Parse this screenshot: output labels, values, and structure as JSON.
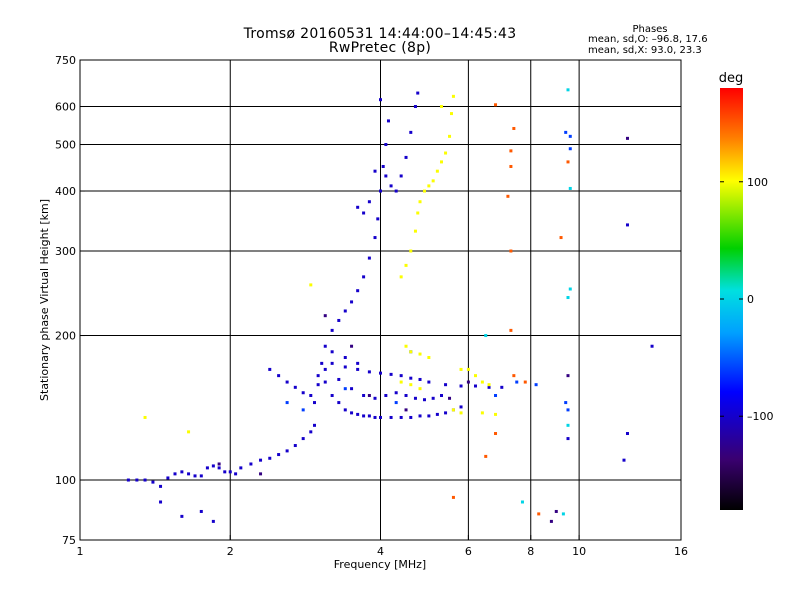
{
  "header": {
    "title_line1": "Tromsø 20160531 14:44:00–14:45:43",
    "title_line2": "RwPretec (8p)",
    "stats_heading": "Phases",
    "stats_o": "mean, sd,O: –96.8, 17.6",
    "stats_x": "mean, sd,X:  93.0, 23.3"
  },
  "colorbar": {
    "unit": "deg",
    "ticks": [
      {
        "value": 100,
        "label": "100"
      },
      {
        "value": 0,
        "label": "0"
      },
      {
        "value": -100,
        "label": "–100"
      }
    ],
    "range": [
      -180,
      180
    ]
  },
  "chart_data": {
    "type": "scatter",
    "title": "Tromsø 20160531 14:44:00–14:45:43",
    "subtitle": "RwPretec (8p)",
    "xlabel": "Frequency [MHz]",
    "ylabel": "Stationary phase Virtual Height [km]",
    "xscale": "log",
    "yscale": "log",
    "xlim": [
      1,
      16
    ],
    "ylim": [
      75,
      750
    ],
    "xticks": [
      {
        "value": 1,
        "label": "1"
      },
      {
        "value": 2,
        "label": "2"
      },
      {
        "value": 4,
        "label": "4"
      },
      {
        "value": 6,
        "label": "6"
      },
      {
        "value": 8,
        "label": "8"
      },
      {
        "value": 10,
        "label": "10"
      },
      {
        "value": 16,
        "label": "16"
      }
    ],
    "yticks": [
      {
        "value": 75,
        "label": "75"
      },
      {
        "value": 100,
        "label": "100"
      },
      {
        "value": 200,
        "label": "200"
      },
      {
        "value": 300,
        "label": "300"
      },
      {
        "value": 400,
        "label": "400"
      },
      {
        "value": 500,
        "label": "500"
      },
      {
        "value": 600,
        "label": "600"
      },
      {
        "value": 750,
        "label": "750"
      }
    ],
    "xgrid": [
      2,
      4,
      6,
      8,
      10
    ],
    "ygrid": [
      100,
      200,
      300,
      400,
      500,
      600
    ],
    "color_variable": "phase [deg]",
    "series": [
      {
        "phase": -100,
        "points": [
          [
            1.25,
            100
          ],
          [
            1.3,
            100
          ],
          [
            1.35,
            100
          ],
          [
            1.4,
            99
          ],
          [
            1.45,
            97
          ],
          [
            1.5,
            101
          ],
          [
            1.55,
            103
          ],
          [
            1.6,
            104
          ],
          [
            1.65,
            103
          ],
          [
            1.7,
            102
          ],
          [
            1.75,
            102
          ],
          [
            1.8,
            106
          ],
          [
            1.85,
            107
          ],
          [
            1.9,
            106
          ],
          [
            1.95,
            104
          ],
          [
            2.0,
            104
          ],
          [
            2.05,
            103
          ],
          [
            2.1,
            106
          ],
          [
            2.2,
            108
          ],
          [
            2.3,
            110
          ],
          [
            2.4,
            111
          ],
          [
            2.5,
            113
          ],
          [
            2.6,
            115
          ],
          [
            2.7,
            118
          ],
          [
            2.8,
            122
          ],
          [
            2.9,
            126
          ],
          [
            2.95,
            130
          ],
          [
            1.45,
            90
          ],
          [
            1.6,
            84
          ],
          [
            1.75,
            86
          ],
          [
            1.85,
            82
          ],
          [
            2.95,
            145
          ],
          [
            3.0,
            158
          ],
          [
            3.05,
            175
          ],
          [
            3.1,
            190
          ],
          [
            3.2,
            205
          ],
          [
            3.3,
            215
          ],
          [
            3.4,
            225
          ],
          [
            3.5,
            235
          ],
          [
            3.6,
            248
          ],
          [
            3.7,
            265
          ],
          [
            3.8,
            290
          ],
          [
            3.9,
            320
          ],
          [
            3.95,
            350
          ],
          [
            4.0,
            400
          ],
          [
            4.05,
            450
          ],
          [
            4.1,
            500
          ],
          [
            4.15,
            560
          ],
          [
            4.0,
            620
          ],
          [
            3.7,
            360
          ],
          [
            3.8,
            380
          ],
          [
            3.6,
            370
          ],
          [
            3.9,
            440
          ],
          [
            4.3,
            400
          ],
          [
            4.4,
            430
          ],
          [
            4.5,
            470
          ],
          [
            4.6,
            530
          ],
          [
            4.7,
            600
          ],
          [
            4.75,
            640
          ],
          [
            4.2,
            410
          ],
          [
            4.1,
            430
          ],
          [
            3.1,
            160
          ],
          [
            3.2,
            150
          ],
          [
            3.3,
            145
          ],
          [
            3.4,
            140
          ],
          [
            3.5,
            138
          ],
          [
            3.6,
            137
          ],
          [
            3.7,
            136
          ],
          [
            3.8,
            136
          ],
          [
            3.9,
            135
          ],
          [
            4.0,
            135
          ],
          [
            4.2,
            135
          ],
          [
            4.4,
            135
          ],
          [
            4.6,
            135
          ],
          [
            4.8,
            136
          ],
          [
            5.0,
            136
          ],
          [
            5.2,
            137
          ],
          [
            5.4,
            138
          ],
          [
            5.6,
            140
          ],
          [
            5.8,
            142
          ],
          [
            3.2,
            175
          ],
          [
            3.4,
            172
          ],
          [
            3.6,
            170
          ],
          [
            3.8,
            168
          ],
          [
            4.0,
            167
          ],
          [
            4.2,
            166
          ],
          [
            4.4,
            165
          ],
          [
            4.6,
            163
          ],
          [
            4.8,
            162
          ],
          [
            5.0,
            160
          ],
          [
            5.4,
            158
          ],
          [
            5.8,
            157
          ],
          [
            6.2,
            157
          ],
          [
            6.6,
            156
          ],
          [
            7.0,
            156
          ],
          [
            3.2,
            185
          ],
          [
            3.4,
            180
          ],
          [
            3.6,
            175
          ],
          [
            3.0,
            165
          ],
          [
            3.1,
            170
          ],
          [
            3.3,
            162
          ],
          [
            3.5,
            155
          ],
          [
            3.7,
            150
          ],
          [
            3.9,
            148
          ],
          [
            4.1,
            150
          ],
          [
            4.3,
            152
          ],
          [
            4.5,
            150
          ],
          [
            4.7,
            148
          ],
          [
            4.9,
            147
          ],
          [
            5.1,
            148
          ],
          [
            5.3,
            150
          ],
          [
            2.4,
            170
          ],
          [
            2.5,
            165
          ],
          [
            2.6,
            160
          ],
          [
            2.7,
            156
          ],
          [
            2.8,
            152
          ],
          [
            2.9,
            150
          ],
          [
            9.5,
            122
          ],
          [
            12.5,
            125
          ],
          [
            12.3,
            110
          ],
          [
            14.0,
            190
          ],
          [
            12.5,
            340
          ]
        ]
      },
      {
        "phase": -130,
        "points": [
          [
            1.9,
            108
          ],
          [
            2.3,
            103
          ],
          [
            3.1,
            220
          ],
          [
            3.5,
            190
          ],
          [
            3.8,
            150
          ],
          [
            4.5,
            140
          ],
          [
            5.5,
            148
          ],
          [
            6.0,
            160
          ],
          [
            8.8,
            82
          ],
          [
            9.0,
            86
          ],
          [
            12.5,
            515
          ],
          [
            9.5,
            165
          ]
        ]
      },
      {
        "phase": -60,
        "points": [
          [
            2.6,
            145
          ],
          [
            2.8,
            140
          ],
          [
            3.4,
            155
          ],
          [
            4.3,
            145
          ],
          [
            4.6,
            185
          ],
          [
            6.8,
            150
          ],
          [
            7.5,
            160
          ],
          [
            8.2,
            158
          ],
          [
            9.4,
            145
          ],
          [
            9.5,
            140
          ],
          [
            9.6,
            520
          ],
          [
            9.4,
            530
          ],
          [
            9.6,
            490
          ]
        ]
      },
      {
        "phase": 100,
        "points": [
          [
            4.4,
            265
          ],
          [
            4.5,
            280
          ],
          [
            4.6,
            300
          ],
          [
            4.7,
            330
          ],
          [
            4.75,
            360
          ],
          [
            4.8,
            380
          ],
          [
            4.9,
            400
          ],
          [
            5.0,
            410
          ],
          [
            5.1,
            420
          ],
          [
            5.2,
            440
          ],
          [
            5.3,
            460
          ],
          [
            5.4,
            480
          ],
          [
            5.5,
            520
          ],
          [
            5.55,
            580
          ],
          [
            5.6,
            630
          ],
          [
            4.5,
            190
          ],
          [
            4.6,
            185
          ],
          [
            4.8,
            183
          ],
          [
            5.0,
            180
          ],
          [
            4.4,
            160
          ],
          [
            4.6,
            158
          ],
          [
            4.8,
            155
          ],
          [
            5.8,
            170
          ],
          [
            6.0,
            170
          ],
          [
            6.2,
            165
          ],
          [
            6.4,
            160
          ],
          [
            6.6,
            158
          ],
          [
            5.6,
            140
          ],
          [
            5.8,
            138
          ],
          [
            6.4,
            138
          ],
          [
            6.8,
            137
          ],
          [
            1.65,
            126
          ],
          [
            1.35,
            135
          ],
          [
            2.9,
            255
          ],
          [
            5.3,
            600
          ]
        ]
      },
      {
        "phase": 150,
        "points": [
          [
            6.8,
            605
          ],
          [
            7.4,
            540
          ],
          [
            7.3,
            485
          ],
          [
            7.3,
            450
          ],
          [
            7.2,
            390
          ],
          [
            7.3,
            300
          ],
          [
            7.3,
            205
          ],
          [
            6.8,
            125
          ],
          [
            6.5,
            112
          ],
          [
            7.4,
            165
          ],
          [
            7.8,
            160
          ],
          [
            9.2,
            320
          ],
          [
            9.5,
            460
          ],
          [
            5.6,
            92
          ],
          [
            8.3,
            85
          ]
        ]
      },
      {
        "phase": 0,
        "points": [
          [
            9.5,
            650
          ],
          [
            9.6,
            405
          ],
          [
            9.6,
            250
          ],
          [
            9.5,
            240
          ],
          [
            7.7,
            90
          ],
          [
            9.5,
            130
          ],
          [
            9.3,
            85
          ],
          [
            6.5,
            200
          ]
        ]
      }
    ]
  }
}
